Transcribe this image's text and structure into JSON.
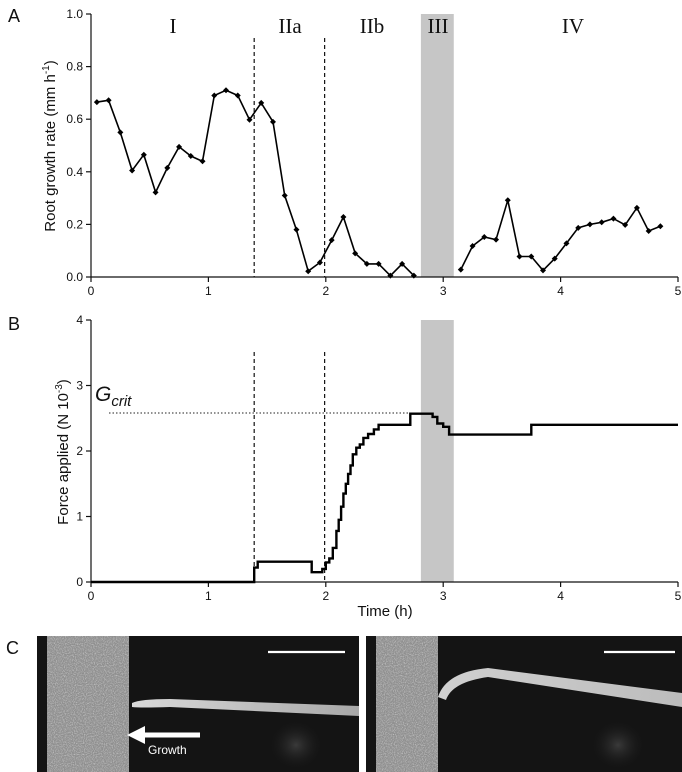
{
  "figure": {
    "panel_a_letter": "A",
    "panel_b_letter": "B",
    "panel_c_letter": "C",
    "phase_labels": [
      "I",
      "IIa",
      "IIb",
      "III",
      "IV"
    ],
    "gcrit_main": "G",
    "gcrit_sub": "crit",
    "growth_label": "Growth"
  },
  "chart_data": [
    {
      "type": "line",
      "panel": "A",
      "ylabel": "Root growth rate (mm h",
      "ylabel_superscript": "-1",
      "ylabel_close": ")",
      "xlim": [
        0,
        5
      ],
      "ylim": [
        0,
        1.0
      ],
      "xticks": [
        0,
        1,
        2,
        3,
        4,
        5
      ],
      "yticks": [
        0.0,
        0.2,
        0.4,
        0.6,
        0.8,
        1.0
      ],
      "ytick_labels": [
        "0.0",
        "0.2",
        "0.4",
        "0.6",
        "0.8",
        "1.0"
      ],
      "grid": false,
      "vertical_dashed_lines": [
        1.39,
        1.99
      ],
      "shaded_region": [
        2.81,
        3.09
      ],
      "series": [
        {
          "segments": [
            {
              "x": [
                0.05,
                0.15,
                0.25,
                0.35,
                0.45,
                0.55,
                0.65,
                0.75,
                0.85,
                0.95,
                1.05,
                1.15,
                1.25,
                1.35,
                1.45,
                1.55,
                1.65,
                1.75,
                1.85,
                1.95,
                2.05,
                2.15,
                2.25,
                2.35,
                2.45,
                2.55,
                2.65,
                2.75
              ],
              "y": [
                0.665,
                0.672,
                0.55,
                0.405,
                0.465,
                0.322,
                0.415,
                0.495,
                0.46,
                0.44,
                0.69,
                0.71,
                0.69,
                0.598,
                0.662,
                0.59,
                0.31,
                0.18,
                0.022,
                0.055,
                0.14,
                0.228,
                0.09,
                0.05,
                0.05,
                0.005,
                0.05,
                0.005
              ]
            },
            {
              "x": [
                3.15,
                3.25,
                3.35,
                3.45,
                3.55,
                3.65,
                3.75,
                3.85,
                3.95,
                4.05,
                4.15,
                4.25,
                4.35,
                4.45,
                4.55,
                4.65,
                4.75,
                4.85
              ],
              "y": [
                0.028,
                0.118,
                0.152,
                0.142,
                0.292,
                0.078,
                0.078,
                0.025,
                0.07,
                0.128,
                0.187,
                0.2,
                0.208,
                0.222,
                0.198,
                0.263,
                0.175,
                0.193
              ]
            }
          ]
        }
      ]
    },
    {
      "type": "line",
      "panel": "B",
      "xlabel": "Time (h)",
      "ylabel": "Force applied (N  10",
      "ylabel_superscript": "-3",
      "ylabel_close": ")",
      "xlim": [
        0,
        5
      ],
      "ylim": [
        0,
        4
      ],
      "xticks": [
        0,
        1,
        2,
        3,
        4,
        5
      ],
      "yticks": [
        0,
        1,
        2,
        3,
        4
      ],
      "grid": false,
      "vertical_dashed_lines": [
        1.39,
        1.99
      ],
      "shaded_region": [
        2.81,
        3.09
      ],
      "reference_line": {
        "y": 2.58,
        "style": "dotted",
        "label": "G crit"
      },
      "series": [
        {
          "x": [
            0,
            1.39,
            1.39,
            1.42,
            1.42,
            1.88,
            1.88,
            1.97,
            1.97,
            2.0,
            2.0,
            2.03,
            2.03,
            2.06,
            2.06,
            2.09,
            2.09,
            2.11,
            2.11,
            2.13,
            2.13,
            2.15,
            2.15,
            2.17,
            2.17,
            2.19,
            2.19,
            2.21,
            2.21,
            2.23,
            2.23,
            2.26,
            2.26,
            2.29,
            2.29,
            2.32,
            2.32,
            2.36,
            2.36,
            2.41,
            2.41,
            2.45,
            2.45,
            2.51,
            2.51,
            2.72,
            2.72,
            2.91,
            2.91,
            2.95,
            2.95,
            3.0,
            3.0,
            3.05,
            3.05,
            3.5,
            3.5,
            3.75,
            3.75,
            5.0
          ],
          "y": [
            0,
            0,
            0.22,
            0.22,
            0.31,
            0.31,
            0.15,
            0.15,
            0.2,
            0.2,
            0.3,
            0.3,
            0.36,
            0.36,
            0.52,
            0.52,
            0.78,
            0.78,
            0.95,
            0.95,
            1.15,
            1.15,
            1.35,
            1.35,
            1.5,
            1.5,
            1.65,
            1.65,
            1.78,
            1.78,
            1.95,
            1.95,
            2.05,
            2.05,
            2.1,
            2.1,
            2.2,
            2.2,
            2.26,
            2.26,
            2.33,
            2.33,
            2.4,
            2.4,
            2.4,
            2.4,
            2.57,
            2.57,
            2.52,
            2.52,
            2.42,
            2.42,
            2.37,
            2.37,
            2.25,
            2.25,
            2.25,
            2.25,
            2.4,
            2.4
          ]
        }
      ]
    }
  ]
}
